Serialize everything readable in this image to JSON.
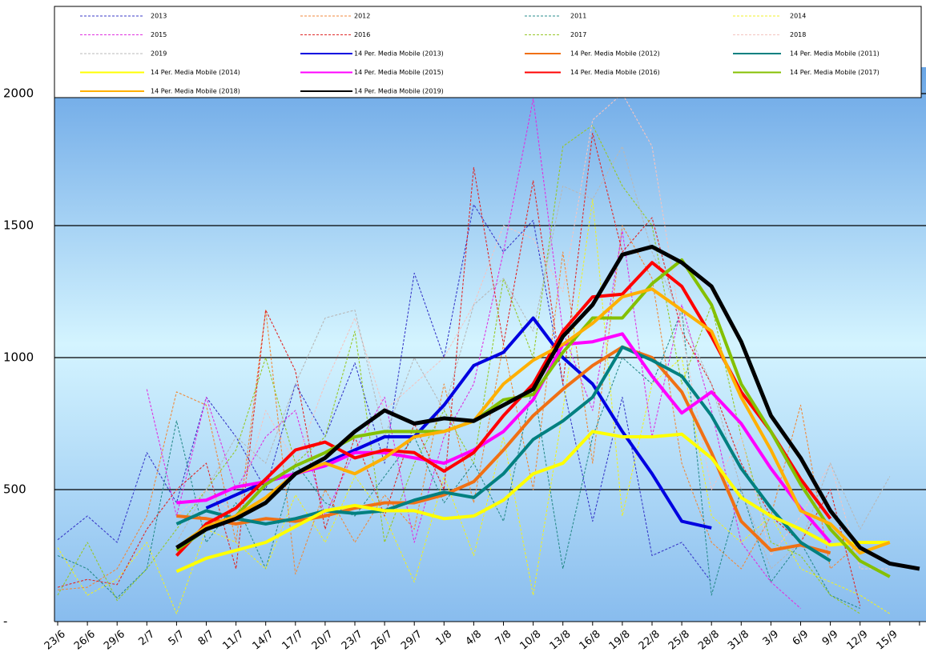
{
  "chart_data": {
    "type": "line",
    "categories": [
      "23/6",
      "26/6",
      "29/6",
      "2/7",
      "5/7",
      "8/7",
      "11/7",
      "14/7",
      "17/7",
      "20/7",
      "23/7",
      "26/7",
      "29/7",
      "1/8",
      "4/8",
      "7/8",
      "10/8",
      "13/8",
      "16/8",
      "19/8",
      "22/8",
      "25/8",
      "28/8",
      "31/8",
      "3/9",
      "6/9",
      "9/9",
      "12/9",
      "15/9",
      null
    ],
    "ylim": [
      0,
      2100
    ],
    "yticks": [
      {
        "value": 0,
        "label": "-"
      },
      500,
      1000,
      1500,
      2000
    ],
    "grid": true,
    "legend": "top",
    "series": [
      {
        "name": "2013",
        "color": "#3a3ac8",
        "dashed": true,
        "values": [
          310,
          400,
          300,
          640,
          450,
          850,
          700,
          500,
          900,
          700,
          980,
          600,
          1320,
          1000,
          1580,
          1400,
          1520,
          900,
          380,
          850,
          250,
          300,
          150,
          null,
          null,
          null,
          null,
          null,
          null,
          null
        ]
      },
      {
        "name": "2012",
        "color": "#f08a3c",
        "dashed": true,
        "values": [
          120,
          130,
          200,
          400,
          870,
          820,
          300,
          1180,
          180,
          500,
          300,
          480,
          350,
          900,
          450,
          1050,
          500,
          1400,
          600,
          1500,
          1300,
          600,
          300,
          200,
          400,
          820,
          200,
          300,
          null,
          null
        ]
      },
      {
        "name": "2011",
        "color": "#2a8c8c",
        "dashed": true,
        "values": [
          250,
          200,
          90,
          200,
          760,
          300,
          450,
          200,
          600,
          450,
          400,
          550,
          700,
          450,
          600,
          380,
          900,
          200,
          700,
          1000,
          900,
          1180,
          100,
          500,
          150,
          300,
          100,
          50,
          null,
          null
        ]
      },
      {
        "name": "2014",
        "color": "#f0f028",
        "dashed": true,
        "values": [
          280,
          100,
          160,
          300,
          30,
          350,
          300,
          200,
          480,
          300,
          550,
          400,
          150,
          550,
          250,
          700,
          100,
          800,
          1600,
          400,
          900,
          1000,
          400,
          300,
          400,
          200,
          150,
          100,
          30,
          null
        ]
      },
      {
        "name": "2015",
        "color": "#e030e0",
        "dashed": true,
        "values": [
          null,
          null,
          null,
          880,
          400,
          850,
          500,
          700,
          800,
          400,
          650,
          850,
          300,
          700,
          900,
          1400,
          1980,
          1100,
          800,
          1480,
          700,
          1200,
          800,
          300,
          150,
          50,
          null,
          null,
          null,
          null
        ]
      },
      {
        "name": "2016",
        "color": "#e02828",
        "dashed": true,
        "values": [
          130,
          160,
          140,
          350,
          500,
          600,
          200,
          1180,
          950,
          350,
          700,
          400,
          750,
          500,
          1720,
          1050,
          1670,
          900,
          1850,
          1400,
          1530,
          1100,
          900,
          600,
          400,
          300,
          500,
          60,
          null,
          null
        ]
      },
      {
        "name": "2017",
        "color": "#98c828",
        "dashed": true,
        "values": [
          100,
          300,
          80,
          200,
          350,
          500,
          650,
          1000,
          600,
          700,
          1100,
          300,
          600,
          800,
          600,
          1300,
          1000,
          1800,
          1880,
          1650,
          1500,
          900,
          1200,
          700,
          300,
          250,
          100,
          30,
          null,
          null
        ]
      },
      {
        "name": "2018",
        "color": "#f4c4c0",
        "dashed": true,
        "values": [
          null,
          null,
          null,
          null,
          400,
          500,
          400,
          800,
          600,
          900,
          1150,
          800,
          900,
          1000,
          1200,
          1500,
          1450,
          1250,
          1900,
          2000,
          1800,
          1100,
          500,
          700,
          250,
          400,
          600,
          200,
          200,
          null
        ]
      },
      {
        "name": "2019",
        "color": "#b8b8b8",
        "dashed": true,
        "values": [
          null,
          null,
          null,
          null,
          300,
          500,
          700,
          600,
          900,
          1150,
          1180,
          700,
          1000,
          800,
          1200,
          1300,
          1100,
          1650,
          1600,
          1800,
          1400,
          1150,
          900,
          500,
          200,
          300,
          600,
          350,
          550,
          null
        ]
      },
      {
        "name": "14 Per. Media Mobile (2013)",
        "color": "#0000e0",
        "dashed": false,
        "values": [
          null,
          null,
          null,
          null,
          null,
          430,
          480,
          530,
          560,
          600,
          650,
          700,
          700,
          820,
          970,
          1020,
          1150,
          1000,
          900,
          720,
          560,
          380,
          355,
          null,
          null,
          null,
          null,
          null,
          null,
          null
        ]
      },
      {
        "name": "14 Per. Media Mobile (2012)",
        "color": "#f07014",
        "dashed": false,
        "values": [
          null,
          null,
          null,
          null,
          400,
          390,
          370,
          390,
          380,
          400,
          430,
          450,
          450,
          480,
          530,
          650,
          780,
          880,
          970,
          1040,
          1000,
          870,
          640,
          380,
          270,
          290,
          260,
          null,
          null,
          null
        ]
      },
      {
        "name": "14 Per. Media Mobile (2011)",
        "color": "#008080",
        "dashed": false,
        "values": [
          null,
          null,
          null,
          null,
          370,
          420,
          390,
          370,
          390,
          420,
          410,
          420,
          460,
          490,
          470,
          560,
          690,
          760,
          850,
          1040,
          990,
          930,
          780,
          580,
          430,
          300,
          230,
          null,
          null,
          null
        ]
      },
      {
        "name": "14 Per. Media Mobile (2014)",
        "color": "#ffff00",
        "dashed": false,
        "values": [
          null,
          null,
          null,
          null,
          190,
          240,
          270,
          300,
          360,
          420,
          440,
          420,
          420,
          390,
          400,
          460,
          560,
          600,
          720,
          700,
          700,
          710,
          620,
          470,
          400,
          350,
          290,
          300,
          300,
          null
        ]
      },
      {
        "name": "14 Per. Media Mobile (2015)",
        "color": "#ff00ff",
        "dashed": false,
        "values": [
          null,
          null,
          null,
          null,
          450,
          460,
          510,
          530,
          560,
          590,
          640,
          640,
          620,
          600,
          650,
          720,
          840,
          1050,
          1060,
          1090,
          930,
          790,
          870,
          750,
          580,
          430,
          300,
          null,
          null,
          null
        ]
      },
      {
        "name": "14 Per. Media Mobile (2016)",
        "color": "#ff0000",
        "dashed": false,
        "values": [
          null,
          null,
          null,
          null,
          250,
          370,
          430,
          540,
          650,
          680,
          620,
          650,
          640,
          570,
          640,
          780,
          900,
          1100,
          1230,
          1240,
          1360,
          1270,
          1080,
          870,
          720,
          540,
          390,
          null,
          null,
          null
        ]
      },
      {
        "name": "14 Per. Media Mobile (2017)",
        "color": "#84c000",
        "dashed": false,
        "values": [
          null,
          null,
          null,
          null,
          270,
          350,
          400,
          520,
          590,
          640,
          700,
          720,
          720,
          720,
          760,
          840,
          860,
          1020,
          1150,
          1150,
          1280,
          1370,
          1200,
          900,
          720,
          520,
          350,
          230,
          170,
          null
        ]
      },
      {
        "name": "14 Per. Media Mobile (2018)",
        "color": "#ffb000",
        "dashed": false,
        "values": [
          null,
          null,
          null,
          null,
          280,
          360,
          400,
          470,
          560,
          600,
          560,
          620,
          700,
          720,
          760,
          900,
          990,
          1050,
          1130,
          1230,
          1260,
          1180,
          1100,
          850,
          650,
          420,
          370,
          260,
          300,
          null
        ]
      },
      {
        "name": "14 Per. Media Mobile (2019)",
        "color": "#000000",
        "dashed": false,
        "values": [
          null,
          null,
          null,
          null,
          280,
          350,
          390,
          450,
          560,
          620,
          720,
          800,
          750,
          770,
          760,
          820,
          880,
          1080,
          1200,
          1390,
          1420,
          1360,
          1270,
          1060,
          780,
          620,
          420,
          280,
          220,
          200
        ]
      }
    ]
  }
}
